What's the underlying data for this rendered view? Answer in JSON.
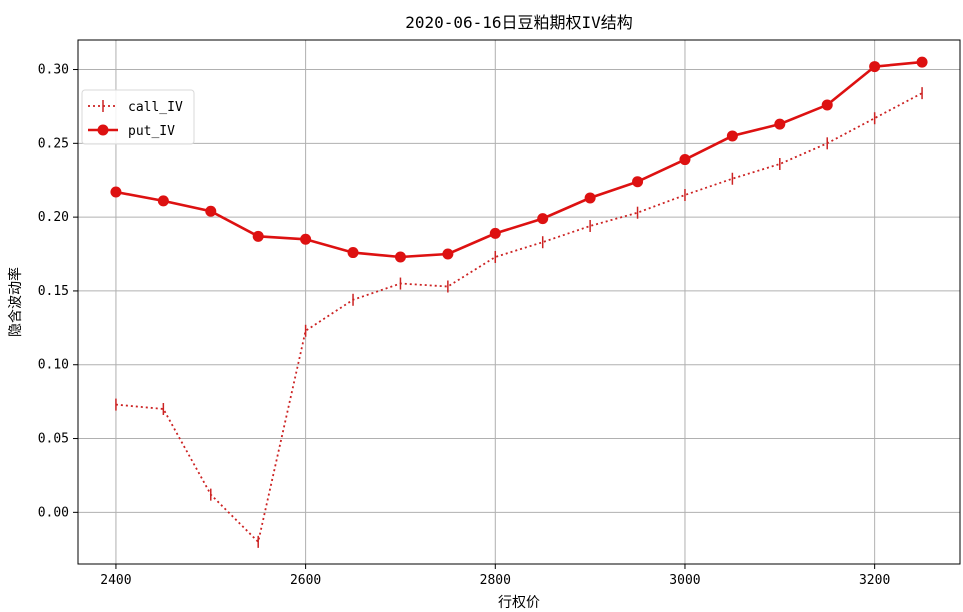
{
  "chart_data": {
    "type": "line",
    "title": "2020-06-16日豆粕期权IV结构",
    "xlabel": "行权价",
    "ylabel": "隐含波动率",
    "x": [
      2400,
      2450,
      2500,
      2550,
      2600,
      2650,
      2700,
      2750,
      2800,
      2850,
      2900,
      2950,
      3000,
      3050,
      3100,
      3150,
      3200,
      3250
    ],
    "xlim": [
      2360,
      3290
    ],
    "ylim": [
      -0.035,
      0.32
    ],
    "xticks": [
      2400,
      2600,
      2800,
      3000,
      3200
    ],
    "yticks": [
      0.0,
      0.05,
      0.1,
      0.15,
      0.2,
      0.25,
      0.3
    ],
    "xtick_labels": [
      "2400",
      "2600",
      "2800",
      "3000",
      "3200"
    ],
    "ytick_labels": [
      "0.00",
      "0.05",
      "0.10",
      "0.15",
      "0.20",
      "0.25",
      "0.30"
    ],
    "grid": true,
    "legend_position": "upper-left",
    "series": [
      {
        "name": "call_IV",
        "color": "#cc2222",
        "line_style": "dotted",
        "marker": "vertical-tick",
        "values": [
          0.073,
          0.07,
          0.012,
          -0.02,
          0.123,
          0.144,
          0.155,
          0.153,
          0.173,
          0.183,
          0.194,
          0.203,
          0.215,
          0.226,
          0.236,
          0.25,
          0.267,
          0.284
        ]
      },
      {
        "name": "put_IV",
        "color": "#dd1111",
        "line_style": "solid",
        "marker": "circle",
        "values": [
          0.217,
          0.211,
          0.204,
          0.187,
          0.185,
          0.176,
          0.173,
          0.175,
          0.189,
          0.199,
          0.213,
          0.224,
          0.239,
          0.255,
          0.263,
          0.276,
          0.302,
          0.305
        ]
      }
    ]
  }
}
